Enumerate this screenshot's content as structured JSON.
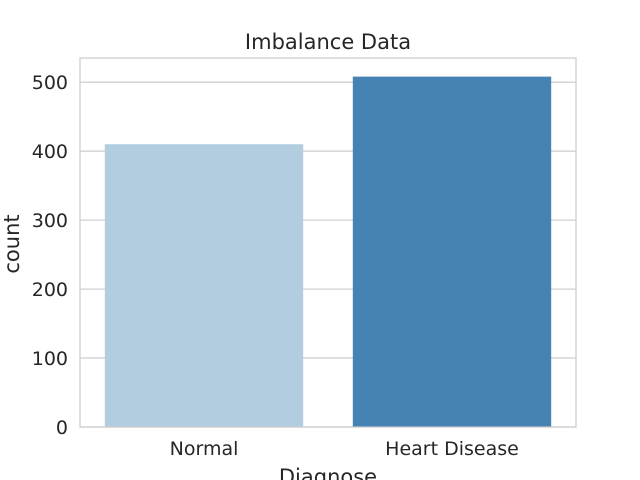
{
  "chart_data": {
    "type": "bar",
    "title": "Imbalance Data",
    "xlabel": "Diagnose",
    "ylabel": "count",
    "categories": [
      "Normal",
      "Heart Disease"
    ],
    "values": [
      410,
      508
    ],
    "ylim": [
      0,
      535
    ],
    "yticks": [
      0,
      100,
      200,
      300,
      400,
      500
    ],
    "ytick_labels": [
      "0",
      "100",
      "200",
      "300",
      "400",
      "500"
    ],
    "grid": true,
    "bar_colors": [
      "#b3cde0",
      "#4682b4"
    ],
    "colors": {
      "grid": "#cccccc",
      "frame": "#cccccc",
      "text": "#262626",
      "background": "#ffffff"
    }
  }
}
